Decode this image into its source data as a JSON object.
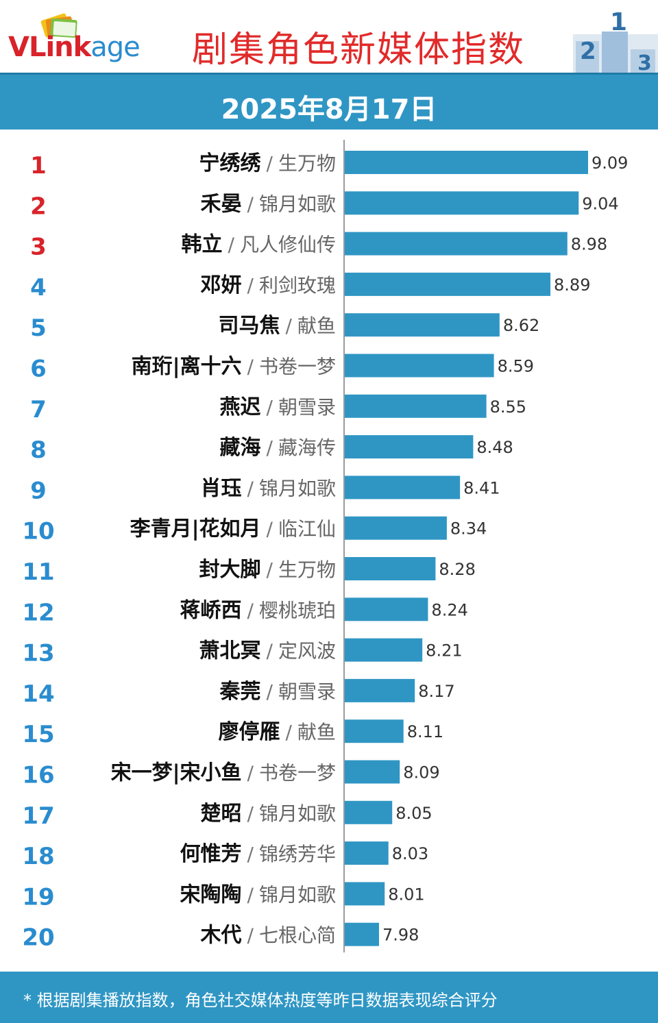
{
  "header": {
    "logo_v": "V",
    "logo_link": "Link",
    "logo_age": "age",
    "title": "剧集角色新媒体指数",
    "podium_digits": [
      "2",
      "1",
      "3"
    ]
  },
  "date": "2025年8月17日",
  "footer": {
    "note": "* 根据剧集播放指数，角色社交媒体热度等昨日数据表现综合评分"
  },
  "colors": {
    "accent": "#2f96c4",
    "bar": "#2f96c4",
    "top_rank": "#d8232a",
    "rank": "#2a8ccf",
    "title": "#e12a2a"
  },
  "chart_data": {
    "type": "bar",
    "orientation": "horizontal",
    "categories": [
      "宁绣绣 / 生万物",
      "禾晏 / 锦月如歌",
      "韩立 / 凡人修仙传",
      "邓妍 / 利剑玫瑰",
      "司马焦 / 献鱼",
      "南珩|离十六 / 书卷一梦",
      "燕迟 / 朝雪录",
      "藏海 / 藏海传",
      "肖珏 / 锦月如歌",
      "李青月|花如月 / 临江仙",
      "封大脚 / 生万物",
      "蒋峤西 / 樱桃琥珀",
      "萧北冥 / 定风波",
      "秦莞 / 朝雪录",
      "廖停雁 / 献鱼",
      "宋一梦|宋小鱼 / 书卷一梦",
      "楚昭 / 锦月如歌",
      "何惟芳 / 锦绣芳华",
      "宋陶陶 / 锦月如歌",
      "木代 / 七根心简"
    ],
    "rows": [
      {
        "rank": "1",
        "name": "宁绣绣",
        "show": "生万物",
        "value": 9.09
      },
      {
        "rank": "2",
        "name": "禾晏",
        "show": "锦月如歌",
        "value": 9.04
      },
      {
        "rank": "3",
        "name": "韩立",
        "show": "凡人修仙传",
        "value": 8.98
      },
      {
        "rank": "4",
        "name": "邓妍",
        "show": "利剑玫瑰",
        "value": 8.89
      },
      {
        "rank": "5",
        "name": "司马焦",
        "show": "献鱼",
        "value": 8.62
      },
      {
        "rank": "6",
        "name": "南珩|离十六",
        "show": "书卷一梦",
        "value": 8.59
      },
      {
        "rank": "7",
        "name": "燕迟",
        "show": "朝雪录",
        "value": 8.55
      },
      {
        "rank": "8",
        "name": "藏海",
        "show": "藏海传",
        "value": 8.48
      },
      {
        "rank": "9",
        "name": "肖珏",
        "show": "锦月如歌",
        "value": 8.41
      },
      {
        "rank": "10",
        "name": "李青月|花如月",
        "show": "临江仙",
        "value": 8.34
      },
      {
        "rank": "11",
        "name": "封大脚",
        "show": "生万物",
        "value": 8.28
      },
      {
        "rank": "12",
        "name": "蒋峤西",
        "show": "樱桃琥珀",
        "value": 8.24
      },
      {
        "rank": "13",
        "name": "萧北冥",
        "show": "定风波",
        "value": 8.21
      },
      {
        "rank": "14",
        "name": "秦莞",
        "show": "朝雪录",
        "value": 8.17
      },
      {
        "rank": "15",
        "name": "廖停雁",
        "show": "献鱼",
        "value": 8.11
      },
      {
        "rank": "16",
        "name": "宋一梦|宋小鱼",
        "show": "书卷一梦",
        "value": 8.09
      },
      {
        "rank": "17",
        "name": "楚昭",
        "show": "锦月如歌",
        "value": 8.05
      },
      {
        "rank": "18",
        "name": "何惟芳",
        "show": "锦绣芳华",
        "value": 8.03
      },
      {
        "rank": "19",
        "name": "宋陶陶",
        "show": "锦月如歌",
        "value": 8.01
      },
      {
        "rank": "20",
        "name": "木代",
        "show": "七根心简",
        "value": 7.98
      }
    ],
    "values": [
      9.09,
      9.04,
      8.98,
      8.89,
      8.62,
      8.59,
      8.55,
      8.48,
      8.41,
      8.34,
      8.28,
      8.24,
      8.21,
      8.17,
      8.11,
      8.09,
      8.05,
      8.03,
      8.01,
      7.98
    ],
    "title": "剧集角色新媒体指数",
    "subtitle": "2025年8月17日",
    "legend": "none",
    "grid": false
  }
}
